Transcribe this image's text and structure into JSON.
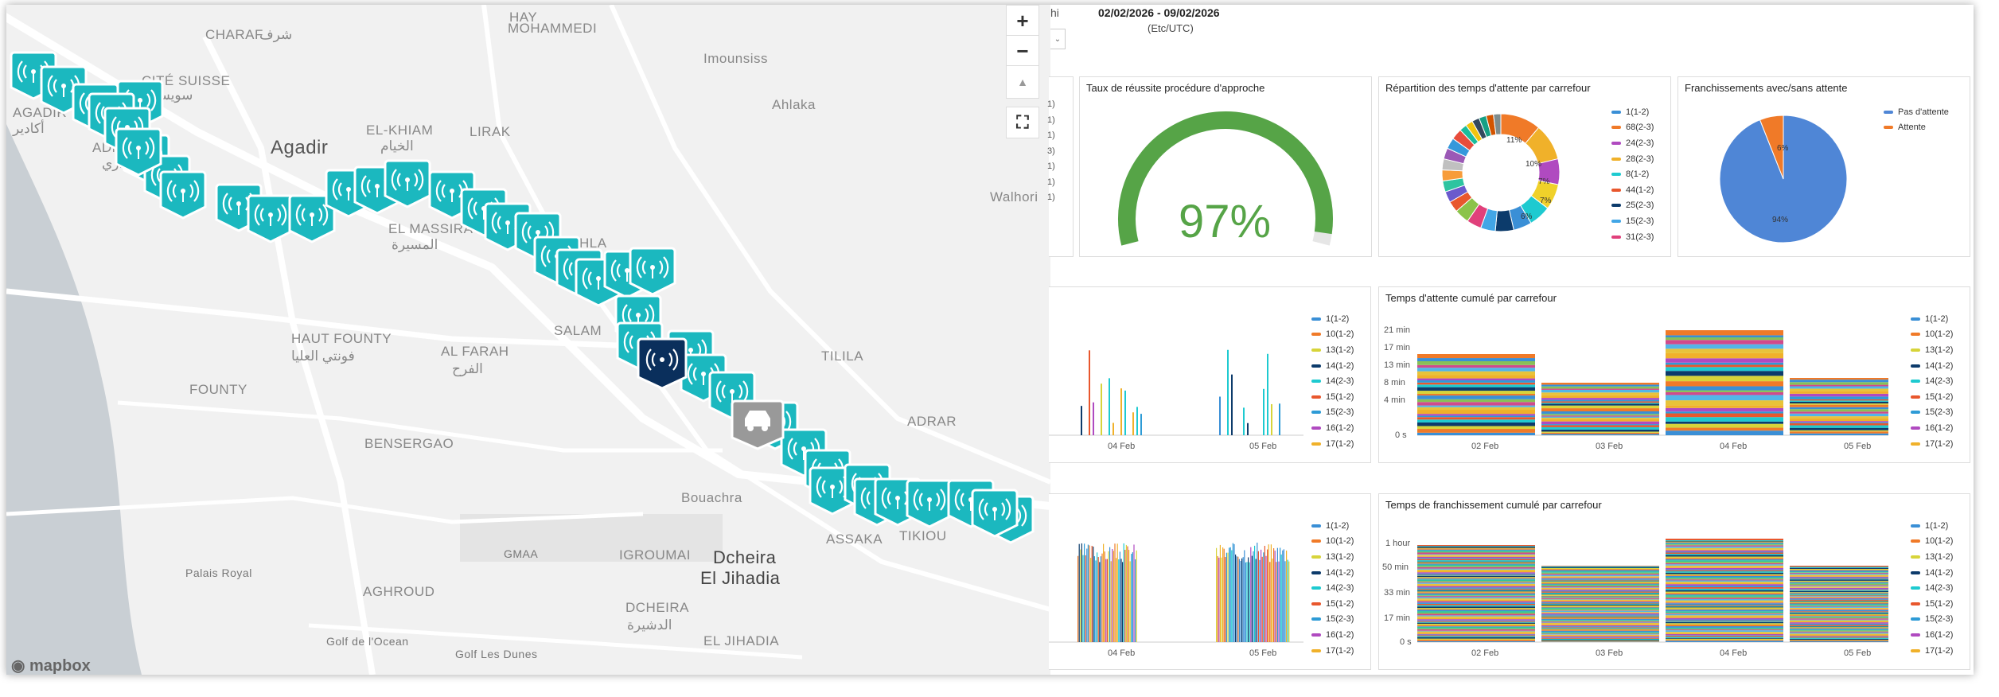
{
  "map": {
    "labels": [
      {
        "text": "CHARAF",
        "cls": ""
      },
      {
        "text": "شرف",
        "cls": ""
      },
      {
        "text": "HAY",
        "cls": ""
      },
      {
        "text": "MOHAMMEDI",
        "cls": ""
      },
      {
        "text": "CITÉ SUISSE",
        "cls": ""
      },
      {
        "text": "سويس",
        "cls": ""
      },
      {
        "text": "AGADIR",
        "cls": ""
      },
      {
        "text": "أكادير",
        "cls": ""
      },
      {
        "text": "ADMINISTR",
        "cls": ""
      },
      {
        "text": "الحي الإداري",
        "cls": ""
      },
      {
        "text": "Agadir",
        "cls": "big"
      },
      {
        "text": "EL-KHIAM",
        "cls": ""
      },
      {
        "text": "الخيام",
        "cls": ""
      },
      {
        "text": "LIRAK",
        "cls": ""
      },
      {
        "text": "Imounsiss",
        "cls": ""
      },
      {
        "text": "Ahlaka",
        "cls": ""
      },
      {
        "text": "Walhori",
        "cls": ""
      },
      {
        "text": "EL MASSIRA",
        "cls": ""
      },
      {
        "text": "المسيرة",
        "cls": ""
      },
      {
        "text": "HLA",
        "cls": ""
      },
      {
        "text": "SALAM",
        "cls": ""
      },
      {
        "text": "HAUT FOUNTY",
        "cls": ""
      },
      {
        "text": "فونتي العليا",
        "cls": ""
      },
      {
        "text": "AL FARAH",
        "cls": ""
      },
      {
        "text": "الفرح",
        "cls": ""
      },
      {
        "text": "TILILA",
        "cls": ""
      },
      {
        "text": "FOUNTY",
        "cls": ""
      },
      {
        "text": "ADRAR",
        "cls": ""
      },
      {
        "text": "BENSERGAO",
        "cls": ""
      },
      {
        "text": "Bouachra",
        "cls": ""
      },
      {
        "text": "GMAA",
        "cls": "small"
      },
      {
        "text": "IGROUMAI",
        "cls": ""
      },
      {
        "text": "Dcheira",
        "cls": "bold"
      },
      {
        "text": "El Jihadia",
        "cls": "bold"
      },
      {
        "text": "ASSAKA",
        "cls": ""
      },
      {
        "text": "TIKIOU",
        "cls": ""
      },
      {
        "text": "Palais Royal",
        "cls": "small"
      },
      {
        "text": "AGHROUD",
        "cls": ""
      },
      {
        "text": "DCHEIRA",
        "cls": ""
      },
      {
        "text": "الدشيرة",
        "cls": ""
      },
      {
        "text": "EL JIHADIA",
        "cls": ""
      },
      {
        "text": "Golf de l'Ocean",
        "cls": "small"
      },
      {
        "text": "Golf Les Dunes",
        "cls": "small"
      }
    ],
    "controls": {
      "zoom_in": "+",
      "zoom_out": "−",
      "compass": "▲",
      "fullscreen": "⛶"
    },
    "attribution": "mapbox",
    "marker_icon": "signal-antenna-icon",
    "vehicle_icon": "car-icon",
    "colors": {
      "marker": "#1bb8bf",
      "marker_selected": "#0a2f5c",
      "vehicle": "#999999",
      "water": "#c9cfd4",
      "road": "#ffffff"
    }
  },
  "dashboard": {
    "tab_partial": "hi",
    "date_range": "02/02/2026 - 09/02/2026",
    "timezone": "(Etc/UTC)",
    "left_stub_ticks": [
      "1)",
      "1)",
      "1)",
      "3)",
      "1)",
      "1)",
      "1)"
    ],
    "approach": {
      "title": "Taux de réussite procédure d'approche",
      "value": "97%",
      "fraction": 0.97,
      "color": "#56a447"
    },
    "wait_distribution": {
      "title": "Répartition des temps d'attente par carrefour",
      "legend": [
        "1(1-2)",
        "68(2-3)",
        "24(2-3)",
        "28(2-3)",
        "8(1-2)",
        "44(1-2)",
        "25(2-3)",
        "15(2-3)",
        "31(2-3)"
      ],
      "colors": [
        "#3a8fd6",
        "#f07a28",
        "#b04ac0",
        "#f0b12a",
        "#1ecad0",
        "#e8572d",
        "#0c3b6b",
        "#42a6e6",
        "#e0407b"
      ],
      "labels": [
        "11%",
        "10%",
        "7%",
        "7%",
        "6%"
      ]
    },
    "crossings": {
      "title": "Franchissements avec/sans attente",
      "legend": [
        "Pas d'attente",
        "Attente"
      ],
      "colors": [
        "#4f86d6",
        "#f07a28"
      ],
      "values": [
        94,
        6
      ],
      "labels": [
        "94%",
        "6%"
      ]
    },
    "mid_left": {
      "x_ticks": [
        "04 Feb",
        "05 Feb"
      ],
      "legend": [
        "1(1-2)",
        "10(1-2)",
        "13(1-2)",
        "14(1-2)",
        "14(2-3)",
        "15(1-2)",
        "15(2-3)",
        "16(1-2)",
        "17(1-2)"
      ]
    },
    "cumulative_wait": {
      "title": "Temps d'attente cumulé par carrefour",
      "y_ticks": [
        "21 min",
        "17 min",
        "13 min",
        "8 min",
        "4 min",
        "0 s"
      ],
      "x_ticks": [
        "02 Feb",
        "03 Feb",
        "04 Feb",
        "05 Feb"
      ],
      "legend": [
        "1(1-2)",
        "10(1-2)",
        "13(1-2)",
        "14(1-2)",
        "14(2-3)",
        "15(1-2)",
        "15(2-3)",
        "16(1-2)",
        "17(1-2)"
      ]
    },
    "bottom_left": {
      "x_ticks": [
        "04 Feb",
        "05 Feb"
      ],
      "legend": [
        "1(1-2)",
        "10(1-2)",
        "13(1-2)",
        "14(1-2)",
        "14(2-3)",
        "15(1-2)",
        "15(2-3)",
        "16(1-2)",
        "17(1-2)"
      ]
    },
    "cumulative_cross": {
      "title": "Temps de franchissement cumulé par carrefour",
      "y_ticks": [
        "1 hour",
        "50 min",
        "33 min",
        "17 min",
        "0 s"
      ],
      "x_ticks": [
        "02 Feb",
        "03 Feb",
        "04 Feb",
        "05 Feb"
      ],
      "legend": [
        "1(1-2)",
        "10(1-2)",
        "13(1-2)",
        "14(1-2)",
        "14(2-3)",
        "15(1-2)",
        "15(2-3)",
        "16(1-2)",
        "17(1-2)"
      ]
    },
    "series_colors": [
      "#3a8fd6",
      "#f07a28",
      "#d7d43a",
      "#0c3b6b",
      "#1ecad0",
      "#e8572d",
      "#2e9bd6",
      "#b04ac0",
      "#f0b12a"
    ]
  }
}
